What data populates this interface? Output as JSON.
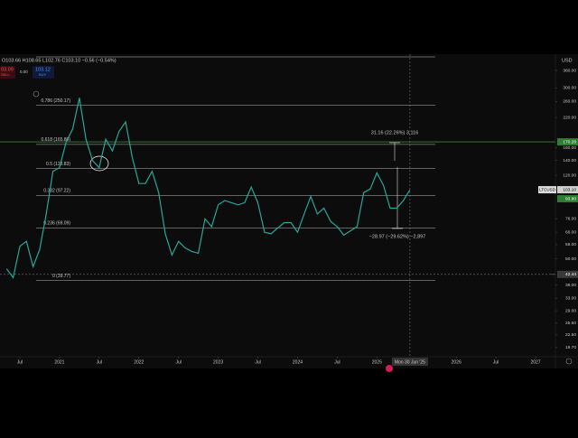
{
  "header": {
    "ohlc": "O103.66 H108.65 L102.76 C103.10 −0.56 (−0.54%)",
    "sell_price": "03.09",
    "sell": "SELL",
    "spread": "0.00",
    "buy_price": "103.12",
    "buy": "BUY",
    "currency": "USD"
  },
  "chart_data": {
    "type": "line",
    "log_scale": true,
    "symbol": "LTCUSD",
    "color": "#26a69a",
    "x": [
      "2020-05",
      "2020-06",
      "2020-07",
      "2020-08",
      "2020-09",
      "2020-10",
      "2020-11",
      "2020-12",
      "2021-01",
      "2021-02",
      "2021-03",
      "2021-04",
      "2021-05",
      "2021-06",
      "2021-07",
      "2021-08",
      "2021-09",
      "2021-10",
      "2021-11",
      "2021-12",
      "2022-01",
      "2022-02",
      "2022-03",
      "2022-04",
      "2022-05",
      "2022-06",
      "2022-07",
      "2022-08",
      "2022-09",
      "2022-10",
      "2022-11",
      "2022-12",
      "2023-01",
      "2023-02",
      "2023-03",
      "2023-04",
      "2023-05",
      "2023-06",
      "2023-07",
      "2023-08",
      "2023-09",
      "2023-10",
      "2023-11",
      "2023-12",
      "2024-01",
      "2024-02",
      "2024-03",
      "2024-04",
      "2024-05",
      "2024-06",
      "2024-07",
      "2024-08",
      "2024-09",
      "2024-10",
      "2024-11",
      "2024-12",
      "2025-01",
      "2025-02",
      "2025-03",
      "2025-04",
      "2025-05",
      "2025-06"
    ],
    "values": [
      45,
      41,
      57,
      60,
      46,
      55,
      80,
      125,
      130,
      170,
      195,
      270,
      175,
      140,
      130,
      175,
      155,
      190,
      210,
      145,
      110,
      110,
      125,
      100,
      65,
      52,
      60,
      56,
      54,
      53,
      76,
      70,
      88,
      92,
      90,
      88,
      90,
      106,
      90,
      66,
      65,
      69,
      73,
      73,
      66,
      80,
      96,
      80,
      85,
      74,
      70,
      64,
      67,
      70,
      100,
      104,
      123,
      108,
      85,
      85,
      92,
      103
    ],
    "xlim": [
      "2020-04",
      "2027-04"
    ],
    "xticks": [
      {
        "value": "2020-07",
        "label": "Jul"
      },
      {
        "value": "2021-01",
        "label": "2021"
      },
      {
        "value": "2021-07",
        "label": "Jul"
      },
      {
        "value": "2022-01",
        "label": "2022"
      },
      {
        "value": "2022-07",
        "label": "Jul"
      },
      {
        "value": "2023-01",
        "label": "2023"
      },
      {
        "value": "2023-07",
        "label": "Jul"
      },
      {
        "value": "2024-01",
        "label": "2024"
      },
      {
        "value": "2024-07",
        "label": "Jul"
      },
      {
        "value": "2025-01",
        "label": "2025"
      },
      {
        "value": "2026-01",
        "label": "2026"
      },
      {
        "value": "2026-07",
        "label": "Jul"
      },
      {
        "value": "2027-01",
        "label": "2027"
      }
    ],
    "ylim": [
      17.9,
      427
    ],
    "yticks": [
      {
        "value": 360,
        "label": "360.00"
      },
      {
        "value": 300,
        "label": "300.00"
      },
      {
        "value": 260,
        "label": "260.00"
      },
      {
        "value": 220,
        "label": "220.00"
      },
      {
        "value": 160,
        "label": "160.00"
      },
      {
        "value": 140,
        "label": "140.00"
      },
      {
        "value": 120,
        "label": "120.00"
      },
      {
        "value": 76,
        "label": "76.00"
      },
      {
        "value": 66,
        "label": "66.00"
      },
      {
        "value": 58,
        "label": "58.00"
      },
      {
        "value": 50,
        "label": "50.00"
      },
      {
        "value": 38,
        "label": "38.00"
      },
      {
        "value": 33,
        "label": "33.00"
      },
      {
        "value": 29,
        "label": "29.00"
      },
      {
        "value": 25.5,
        "label": "25.50"
      },
      {
        "value": 22.5,
        "label": "22.50"
      },
      {
        "value": 19.7,
        "label": "19.70"
      }
    ],
    "fib_levels": [
      {
        "label": "0.786 (250.17)",
        "value": 250.17
      },
      {
        "label": "0.618 (165.80)",
        "value": 165.8
      },
      {
        "label": "0.5 (128.83)",
        "value": 128.83
      },
      {
        "label": "0.382 (97.22)",
        "value": 97.22
      },
      {
        "label": "0.236 (69.09)",
        "value": 69.09
      },
      {
        "label": "0 (39.77)",
        "value": 39.77
      }
    ],
    "price_markers": [
      {
        "value": 170.28,
        "label": "170.28",
        "color": "#2e7d32"
      },
      {
        "value": 103.1,
        "label": "103.10",
        "color": "#d0d0d0"
      },
      {
        "value": 93.8,
        "label": "93.80",
        "color": "#2e7d32"
      },
      {
        "value": 42.44,
        "label": "42.44",
        "color": "#3a3a3a"
      }
    ],
    "annotations": [
      "31.16 (22.26%) 3,116",
      "−28.97 (−29.62%) −2,897"
    ],
    "crosshair": {
      "x": "2025-06",
      "label": "Mon 30 Jun '25",
      "value": 42.44
    }
  }
}
